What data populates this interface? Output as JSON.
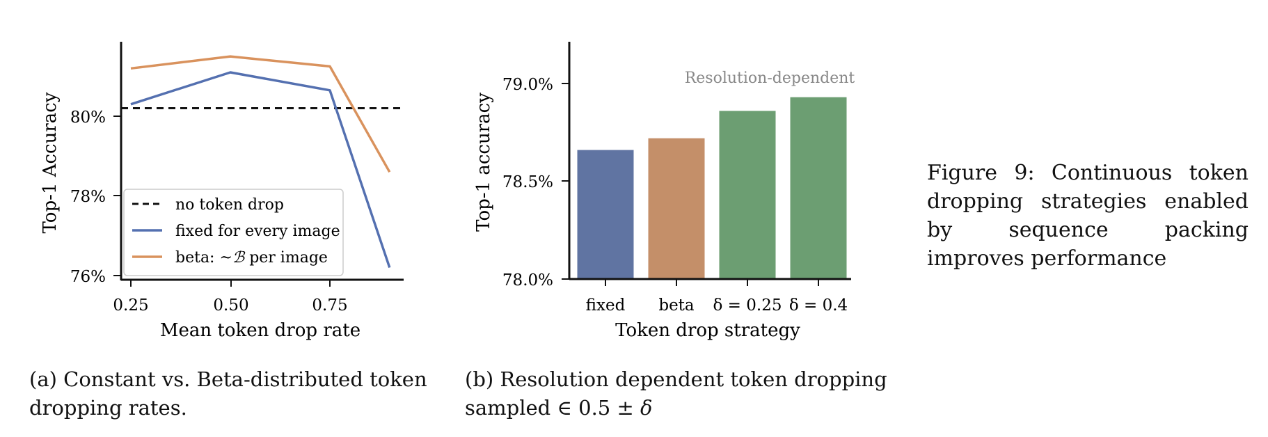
{
  "chart_data": [
    {
      "type": "line",
      "panel": "a",
      "xlabel": "Mean token drop rate",
      "ylabel": "Top-1 Accuracy",
      "x_ticks": [
        "0.25",
        "0.50",
        "0.75"
      ],
      "x_tick_values": [
        0.25,
        0.5,
        0.75
      ],
      "y_ticks": [
        "76%",
        "78%",
        "80%"
      ],
      "y_tick_values": [
        76,
        78,
        80
      ],
      "xlim": [
        0.25,
        0.9
      ],
      "ylim": [
        75.9,
        81.9
      ],
      "reference_line": {
        "name": "no token drop",
        "y": 80.2,
        "color": "#111111",
        "style": "dashed"
      },
      "series": [
        {
          "name": "fixed for every image",
          "color": "#5470b0",
          "x": [
            0.25,
            0.5,
            0.75,
            0.9
          ],
          "y": [
            80.3,
            81.1,
            80.65,
            76.2
          ]
        },
        {
          "name": "beta: ",
          "name_math": "~ℬ",
          "name_suffix": " per image",
          "color": "#d9925d",
          "x": [
            0.25,
            0.5,
            0.75,
            0.9
          ],
          "y": [
            81.2,
            81.5,
            81.25,
            78.6
          ]
        }
      ],
      "legend_position": "bottom-left",
      "grid": false
    },
    {
      "type": "bar",
      "panel": "b",
      "xlabel": "Token drop strategy",
      "ylabel": "Top-1 accuracy",
      "categories": [
        "fixed",
        "beta",
        "δ = 0.25",
        "δ = 0.4"
      ],
      "values": [
        78.66,
        78.72,
        78.86,
        78.93
      ],
      "colors": [
        "#6074a2",
        "#c48f69",
        "#6c9e72",
        "#6c9e72"
      ],
      "y_ticks": [
        "78.0%",
        "78.5%",
        "79.0%"
      ],
      "y_tick_values": [
        78.0,
        78.5,
        79.0
      ],
      "ylim": [
        78.0,
        79.2
      ],
      "annotation": {
        "text": "Resolution-dependent",
        "color": "#888888"
      },
      "grid": false
    }
  ],
  "captions": {
    "a": "(a) Constant vs. Beta-distributed token dropping rates.",
    "b_text": "(b) Resolution dependent token dropping sampled ∈ 0.5 ± ",
    "b_symbol": "δ",
    "figure": "Figure 9:  Continuous token dropping strategies enabled by sequence packing improves performance"
  }
}
